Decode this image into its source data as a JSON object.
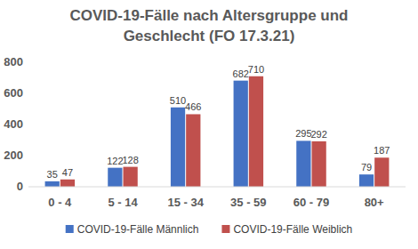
{
  "chart_data": {
    "type": "bar",
    "title": "COVID-19-Fälle nach Altersgruppe und Geschlecht (FO 17.3.21)",
    "categories": [
      "0 - 4",
      "5 - 14",
      "15 - 34",
      "35 - 59",
      "60 - 79",
      "80+"
    ],
    "series": [
      {
        "name": "COVID-19-Fälle Männlich",
        "color": "#4472c4",
        "values": [
          35,
          122,
          510,
          682,
          295,
          79
        ]
      },
      {
        "name": "COVID-19-Fälle Weiblich",
        "color": "#c0504d",
        "values": [
          47,
          128,
          466,
          710,
          292,
          187
        ]
      }
    ],
    "ylim": [
      0,
      800
    ],
    "yticks": [
      0,
      200,
      400,
      600,
      800
    ],
    "grid": false,
    "data_labels": true,
    "legend": "bottom"
  }
}
